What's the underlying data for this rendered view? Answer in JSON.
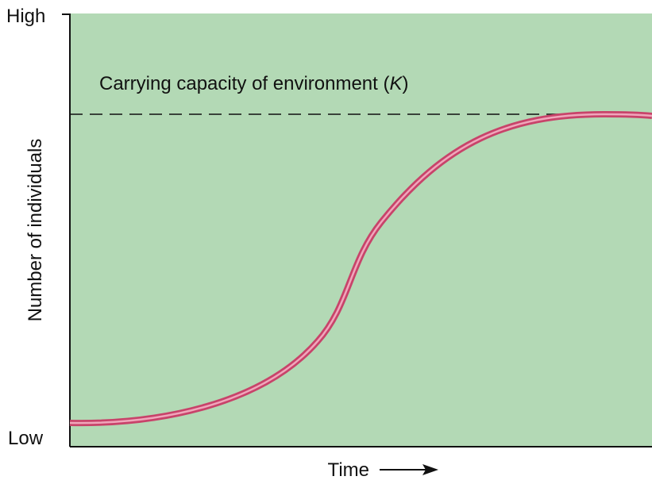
{
  "axes": {
    "y_high": "High",
    "y_low": "Low",
    "y_label": "Number of individuals",
    "x_label": "Time"
  },
  "annotation": {
    "text": "Carrying capacity of environment (",
    "variable": "K",
    "close": ")"
  }
}
